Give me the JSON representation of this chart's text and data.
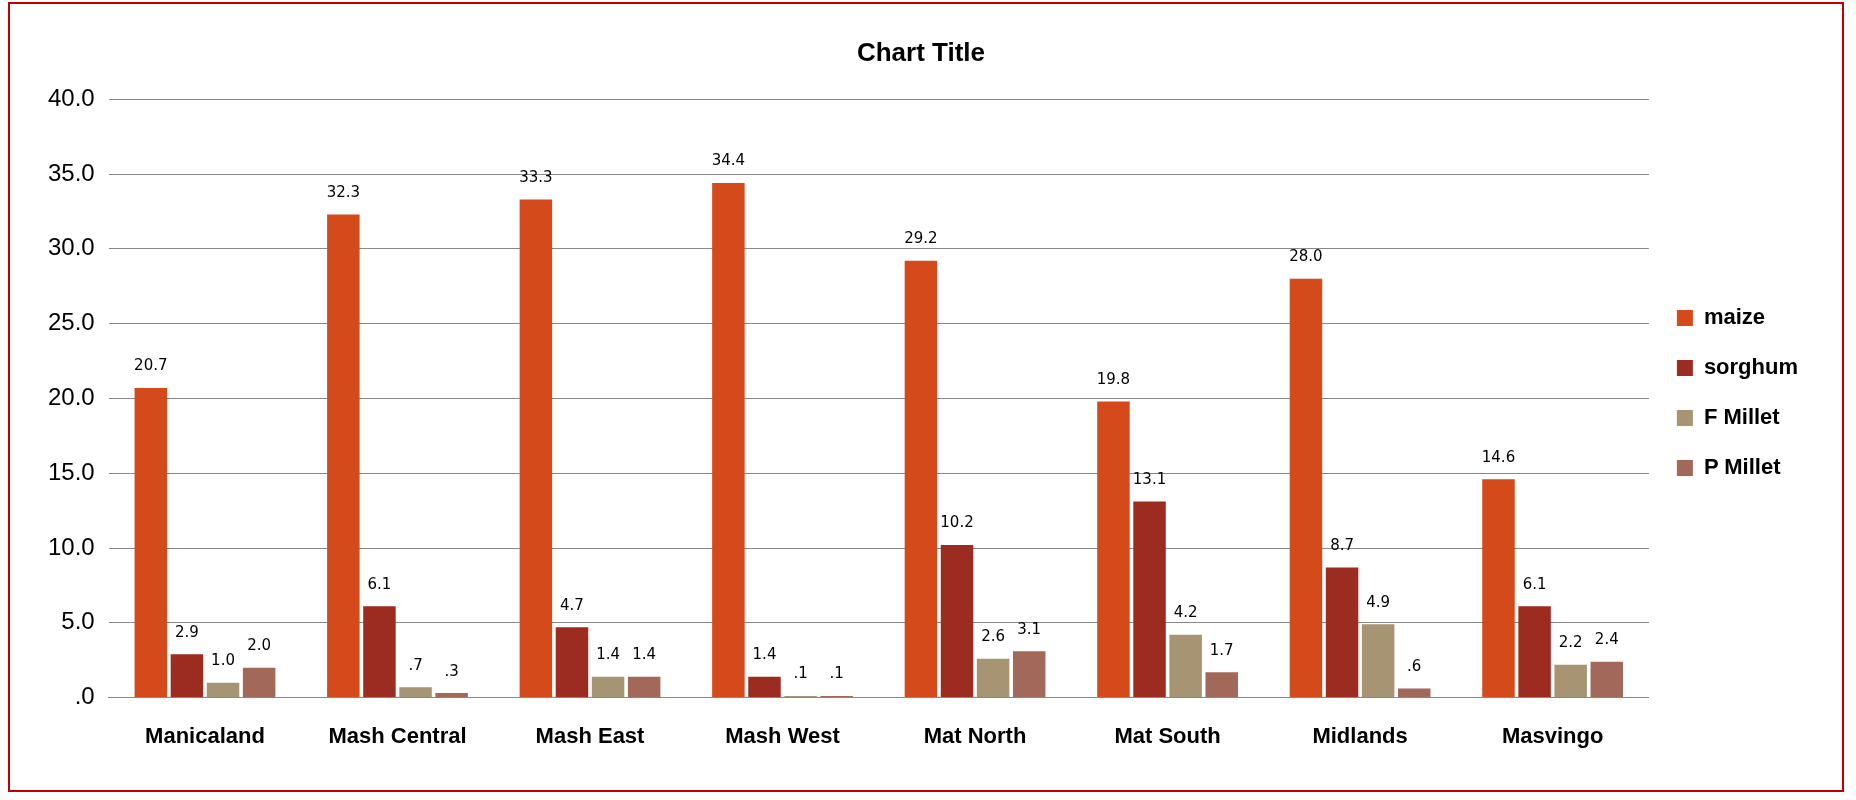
{
  "chart_data": {
    "type": "bar",
    "title": "Chart Title",
    "categories": [
      "Manicaland",
      "Mash Central",
      "Mash East",
      "Mash West",
      "Mat North",
      "Mat South",
      "Midlands",
      "Masvingo"
    ],
    "series": [
      {
        "name": "maize",
        "color": "#d44a1a",
        "values": [
          20.7,
          32.3,
          33.3,
          34.4,
          29.2,
          19.8,
          28.0,
          14.6
        ],
        "value_labels": [
          "20.7",
          "32.3",
          "33.3",
          "34.4",
          "29.2",
          "19.8",
          "28.0",
          "14.6"
        ]
      },
      {
        "name": "sorghum",
        "color": "#9c2b20",
        "values": [
          2.9,
          6.1,
          4.7,
          1.4,
          10.2,
          13.1,
          8.7,
          6.1
        ],
        "value_labels": [
          "2.9",
          "6.1",
          "4.7",
          "1.4",
          "10.2",
          "13.1",
          "8.7",
          "6.1"
        ]
      },
      {
        "name": "F Millet",
        "color": "#a69472",
        "values": [
          1.0,
          0.7,
          1.4,
          0.1,
          2.6,
          4.2,
          4.9,
          2.2
        ],
        "value_labels": [
          "1.0",
          ".7",
          "1.4",
          ".1",
          "2.6",
          "4.2",
          "4.9",
          "2.2"
        ]
      },
      {
        "name": "P Millet",
        "color": "#a2695b",
        "values": [
          2.0,
          0.3,
          1.4,
          0.1,
          3.1,
          1.7,
          0.6,
          2.4
        ],
        "value_labels": [
          "2.0",
          ".3",
          "1.4",
          ".1",
          "3.1",
          "1.7",
          ".6",
          "2.4"
        ]
      }
    ],
    "ylim": [
      0,
      40
    ],
    "yticks": [
      {
        "value": 0,
        "label": ".0"
      },
      {
        "value": 5,
        "label": "5.0"
      },
      {
        "value": 10,
        "label": "10.0"
      },
      {
        "value": 15,
        "label": "15.0"
      },
      {
        "value": 20,
        "label": "20.0"
      },
      {
        "value": 25,
        "label": "25.0"
      },
      {
        "value": 30,
        "label": "30.0"
      },
      {
        "value": 35,
        "label": "35.0"
      },
      {
        "value": 40,
        "label": "40.0"
      }
    ],
    "grid": "y",
    "legend": "right"
  }
}
